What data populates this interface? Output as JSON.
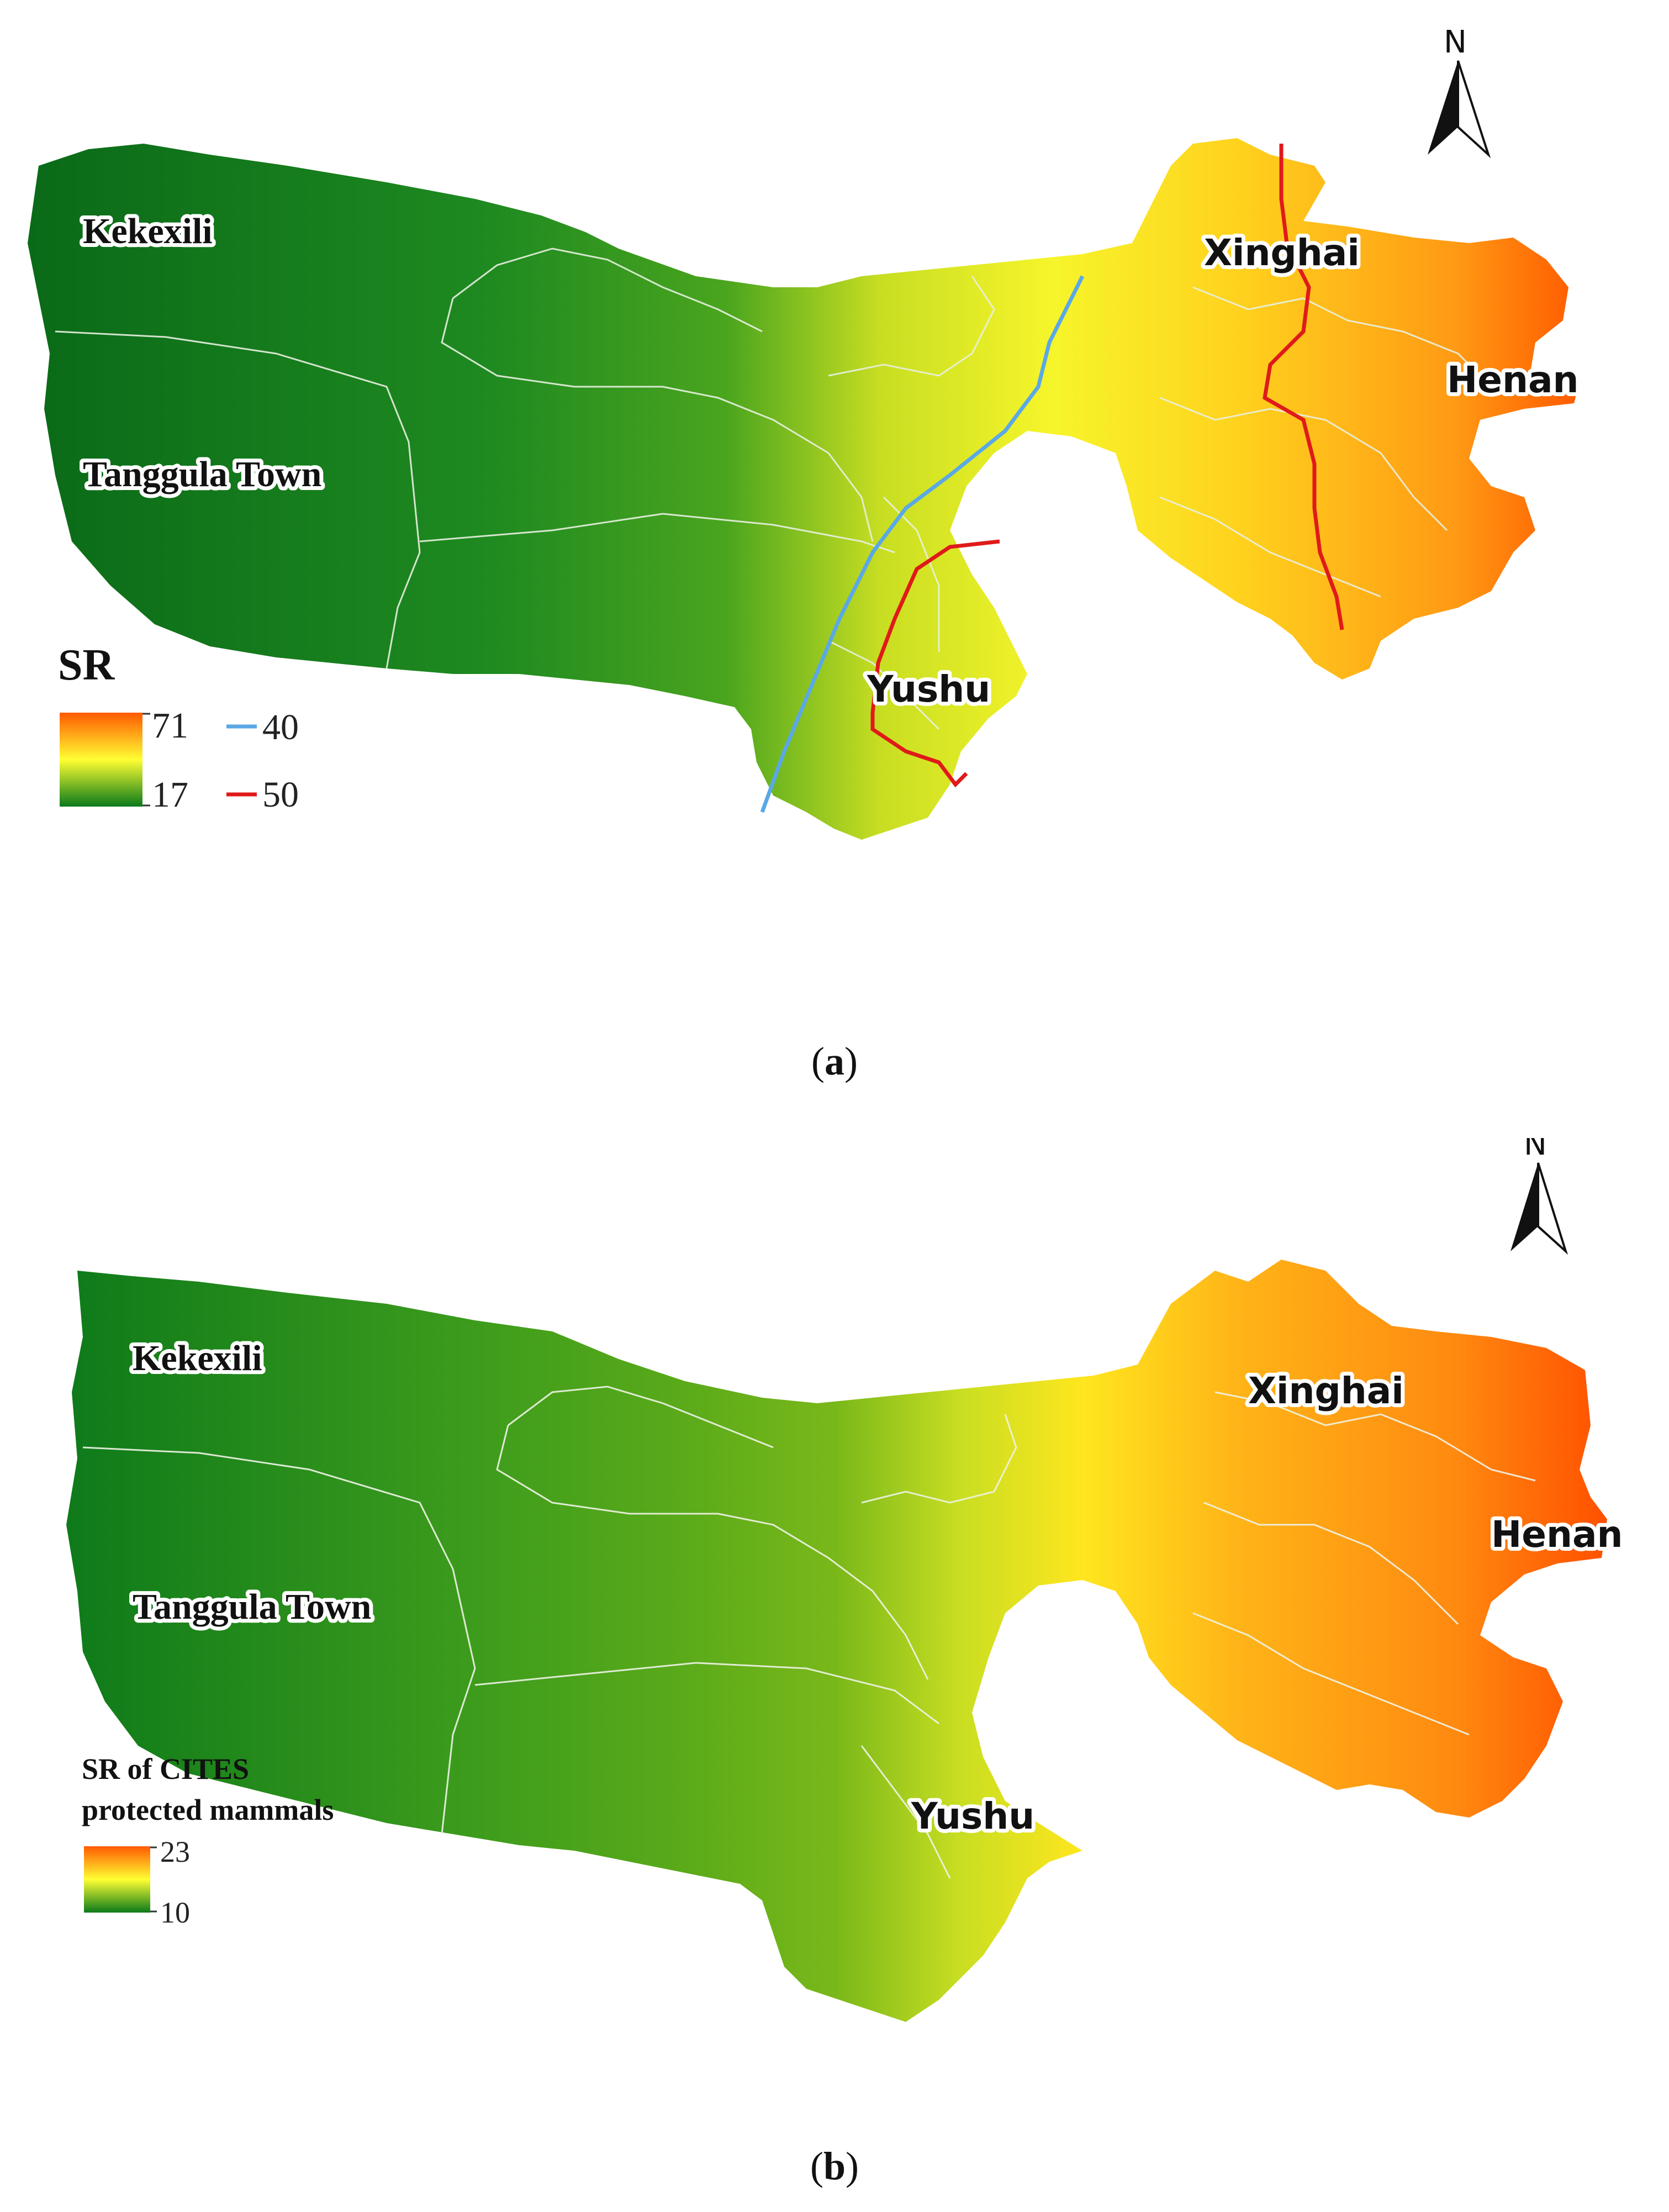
{
  "panel_a": {
    "places": {
      "kekexili": "Kekexili",
      "tanggula": "Tanggula Town",
      "xinghai": "Xinghai",
      "henan": "Henan",
      "yushu": "Yushu"
    },
    "legend": {
      "title": "SR",
      "max": "71",
      "min": "17",
      "isoline_blue": "40",
      "isoline_red": "50"
    },
    "north": "N",
    "caption_letter": "a"
  },
  "panel_b": {
    "places": {
      "kekexili": "Kekexili",
      "tanggula": "Tanggula Town",
      "xinghai": "Xinghai",
      "henan": "Henan",
      "yushu": "Yushu"
    },
    "legend": {
      "title_line1": "SR of CITES",
      "title_line2": "protected mammals",
      "max": "23",
      "min": "10"
    },
    "north": "N",
    "caption_letter": "b"
  },
  "colors": {
    "high": "#ff5a00",
    "mid": "#ffff33",
    "low": "#0a7a1a",
    "isoline_blue": "#5aa8e6",
    "isoline_red": "#e01a1a"
  }
}
